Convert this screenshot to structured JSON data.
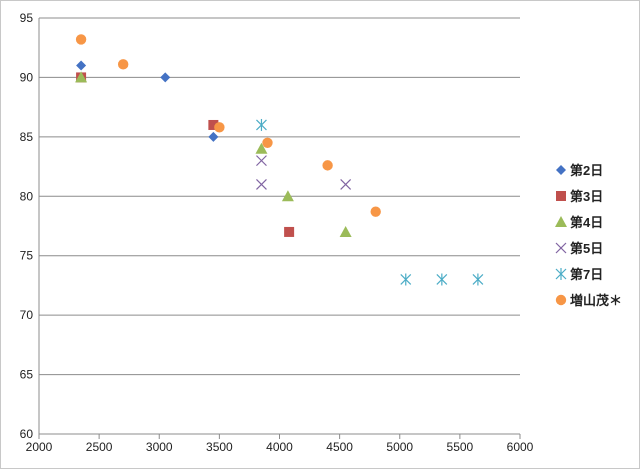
{
  "chart_data": {
    "type": "scatter",
    "title": "",
    "xlabel": "",
    "ylabel": "",
    "xlim": [
      2000,
      6000
    ],
    "ylim": [
      60,
      95
    ],
    "x_ticks": [
      "2000",
      "2500",
      "3000",
      "3500",
      "4000",
      "4500",
      "5000",
      "5500",
      "6000"
    ],
    "y_ticks": [
      "60",
      "65",
      "70",
      "75",
      "80",
      "85",
      "90",
      "95"
    ],
    "grid": "horizontal",
    "legend_position": "right",
    "series": [
      {
        "name": "第2日",
        "marker": "diamond",
        "color": "#4472c4",
        "points": [
          [
            2350,
            91
          ],
          [
            3050,
            90
          ],
          [
            3450,
            85
          ]
        ]
      },
      {
        "name": "第3日",
        "marker": "square",
        "color": "#c0504d",
        "points": [
          [
            2350,
            90
          ],
          [
            3450,
            86
          ],
          [
            4080,
            77
          ]
        ]
      },
      {
        "name": "第4日",
        "marker": "triangle",
        "color": "#9bbb59",
        "points": [
          [
            2350,
            90
          ],
          [
            3850,
            84
          ],
          [
            4070,
            80
          ],
          [
            4550,
            77
          ]
        ]
      },
      {
        "name": "第5日",
        "marker": "x",
        "color": "#8064a2",
        "points": [
          [
            3850,
            83
          ],
          [
            3850,
            81
          ],
          [
            4550,
            81
          ]
        ]
      },
      {
        "name": "第7日",
        "marker": "star",
        "color": "#4bacc6",
        "points": [
          [
            3850,
            86
          ],
          [
            5050,
            73
          ],
          [
            5350,
            73
          ],
          [
            5650,
            73
          ]
        ]
      },
      {
        "name": "増山茂＊",
        "marker": "circle",
        "color": "#f79646",
        "points": [
          [
            2350,
            93.2
          ],
          [
            2700,
            91.1
          ],
          [
            3500,
            85.8
          ],
          [
            3900,
            84.5
          ],
          [
            4400,
            82.6
          ],
          [
            4800,
            78.7
          ]
        ]
      }
    ]
  }
}
